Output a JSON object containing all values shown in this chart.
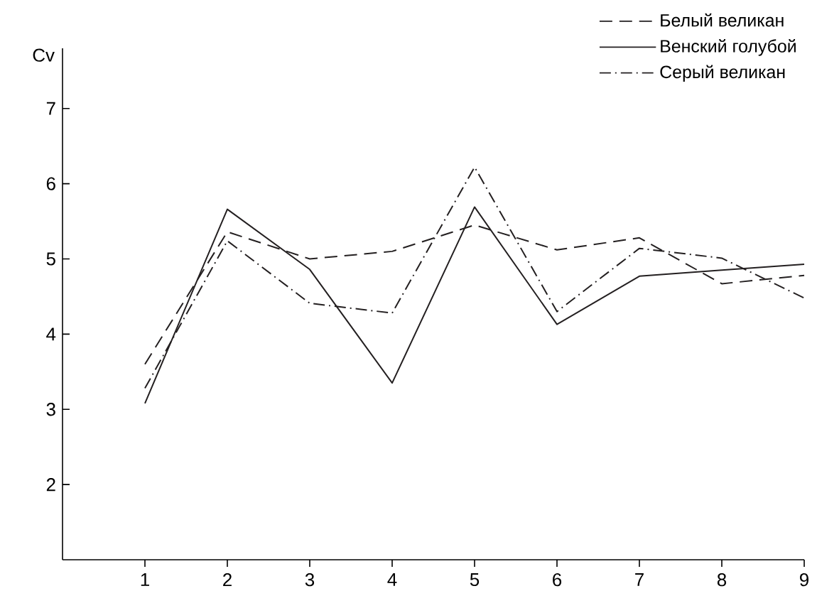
{
  "chart_data": {
    "type": "line",
    "ylabel": "Cv",
    "x": [
      1,
      2,
      3,
      4,
      5,
      6,
      7,
      8,
      9
    ],
    "xlim": [
      0,
      9
    ],
    "ylim": [
      1,
      7.8
    ],
    "xticks": [
      1,
      2,
      3,
      4,
      5,
      6,
      7,
      8,
      9
    ],
    "yticks": [
      2,
      3,
      4,
      5,
      6,
      7
    ],
    "legend": "top right",
    "grid": false,
    "series": [
      {
        "name": "Белый великан",
        "color": "#231f20",
        "line_style": "dashed",
        "values": [
          3.6,
          5.36,
          5.0,
          5.1,
          5.45,
          5.12,
          5.28,
          4.67,
          4.78
        ]
      },
      {
        "name": "Венский голубой",
        "color": "#231f20",
        "line_style": "solid",
        "values": [
          3.08,
          5.66,
          4.86,
          3.35,
          5.69,
          4.13,
          4.77,
          4.85,
          4.93
        ]
      },
      {
        "name": "Серый великан",
        "color": "#231f20",
        "line_style": "dashdot",
        "values": [
          3.28,
          5.24,
          4.41,
          4.28,
          6.22,
          4.3,
          5.14,
          5.01,
          4.48
        ]
      }
    ]
  }
}
